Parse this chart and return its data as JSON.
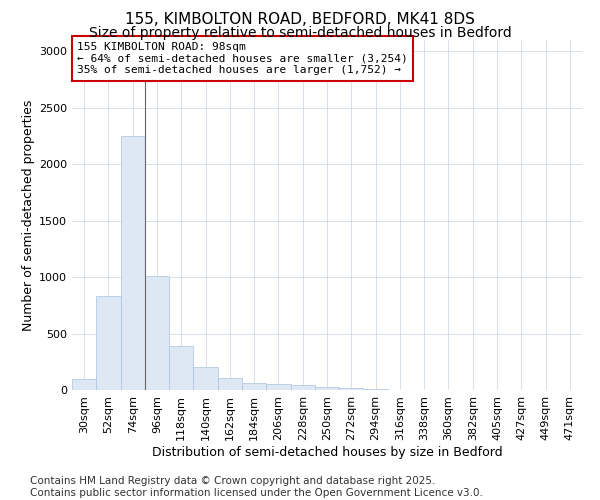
{
  "title_line1": "155, KIMBOLTON ROAD, BEDFORD, MK41 8DS",
  "title_line2": "Size of property relative to semi-detached houses in Bedford",
  "xlabel": "Distribution of semi-detached houses by size in Bedford",
  "ylabel": "Number of semi-detached properties",
  "bar_color": "#dde8f4",
  "bar_edge_color": "#aac4e0",
  "grid_color": "#c8d4e0",
  "background_color": "#ffffff",
  "categories": [
    "30sqm",
    "52sqm",
    "74sqm",
    "96sqm",
    "118sqm",
    "140sqm",
    "162sqm",
    "184sqm",
    "206sqm",
    "228sqm",
    "250sqm",
    "272sqm",
    "294sqm",
    "316sqm",
    "338sqm",
    "360sqm",
    "382sqm",
    "405sqm",
    "427sqm",
    "449sqm",
    "471sqm"
  ],
  "values": [
    100,
    830,
    2250,
    1010,
    390,
    205,
    110,
    65,
    55,
    40,
    30,
    20,
    5,
    2,
    1,
    0,
    0,
    0,
    0,
    0,
    0
  ],
  "ylim": [
    0,
    3100
  ],
  "yticks": [
    0,
    500,
    1000,
    1500,
    2000,
    2500,
    3000
  ],
  "annotation_line1": "155 KIMBOLTON ROAD: 98sqm",
  "annotation_line2": "← 64% of semi-detached houses are smaller (3,254)",
  "annotation_line3": "35% of semi-detached houses are larger (1,752) →",
  "vline_bin_index": 3,
  "footer_line1": "Contains HM Land Registry data © Crown copyright and database right 2025.",
  "footer_line2": "Contains public sector information licensed under the Open Government Licence v3.0.",
  "bar_width": 1.0,
  "annotation_box_color": "#ffffff",
  "annotation_box_edge_color": "#cc0000",
  "annotation_fontsize": 8,
  "title_fontsize1": 11,
  "title_fontsize2": 10,
  "xlabel_fontsize": 9,
  "ylabel_fontsize": 9,
  "tick_fontsize": 8,
  "footer_fontsize": 7.5
}
